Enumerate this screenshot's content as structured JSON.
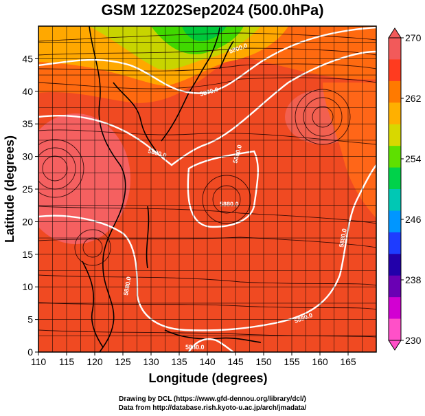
{
  "title": "GSM 12Z02Sep2024 (500.0hPa)",
  "xlabel": "Longitude (degrees)",
  "ylabel": "Latitude  (degrees)",
  "x_ticks": [
    "110",
    "115",
    "120",
    "125",
    "130",
    "135",
    "140",
    "145",
    "150",
    "155",
    "160",
    "165"
  ],
  "y_ticks": [
    "0",
    "5",
    "10",
    "15",
    "20",
    "25",
    "30",
    "35",
    "40",
    "45"
  ],
  "colorbar": {
    "ticks": [
      "270",
      "262",
      "254",
      "246",
      "238",
      "230"
    ],
    "colors": [
      "#f25a5a",
      "#ff3b1f",
      "#ff7a00",
      "#ffb000",
      "#d8d800",
      "#5ee000",
      "#00d24a",
      "#00c8b4",
      "#0096ff",
      "#1e3cff",
      "#2200aa",
      "#6a00b4",
      "#d200d2",
      "#ff50c8"
    ]
  },
  "contour_labels": [
    "5880.0",
    "5880.0",
    "5880.0",
    "5880.0",
    "5880.0",
    "5880.0",
    "5880.0",
    "5800.0",
    "5800.0"
  ],
  "credits": {
    "line1": "Drawing by DCL (https://www.gfd-dennou.org/library/dcl/)",
    "line2": "Data from http://database.rish.kyoto-u.ac.jp/arch/jmadata/"
  },
  "chart_data": {
    "type": "heatmap",
    "title": "GSM 12Z02Sep2024 (500.0hPa)",
    "xlabel": "Longitude (degrees)",
    "ylabel": "Latitude  (degrees)",
    "xlim": [
      110,
      170
    ],
    "ylim": [
      0,
      50
    ],
    "color_range": [
      230,
      270
    ],
    "colorbar_ticks": [
      270,
      262,
      254,
      246,
      238,
      230
    ],
    "grid": true,
    "contours": [
      "5880.0",
      "5800.0"
    ]
  }
}
